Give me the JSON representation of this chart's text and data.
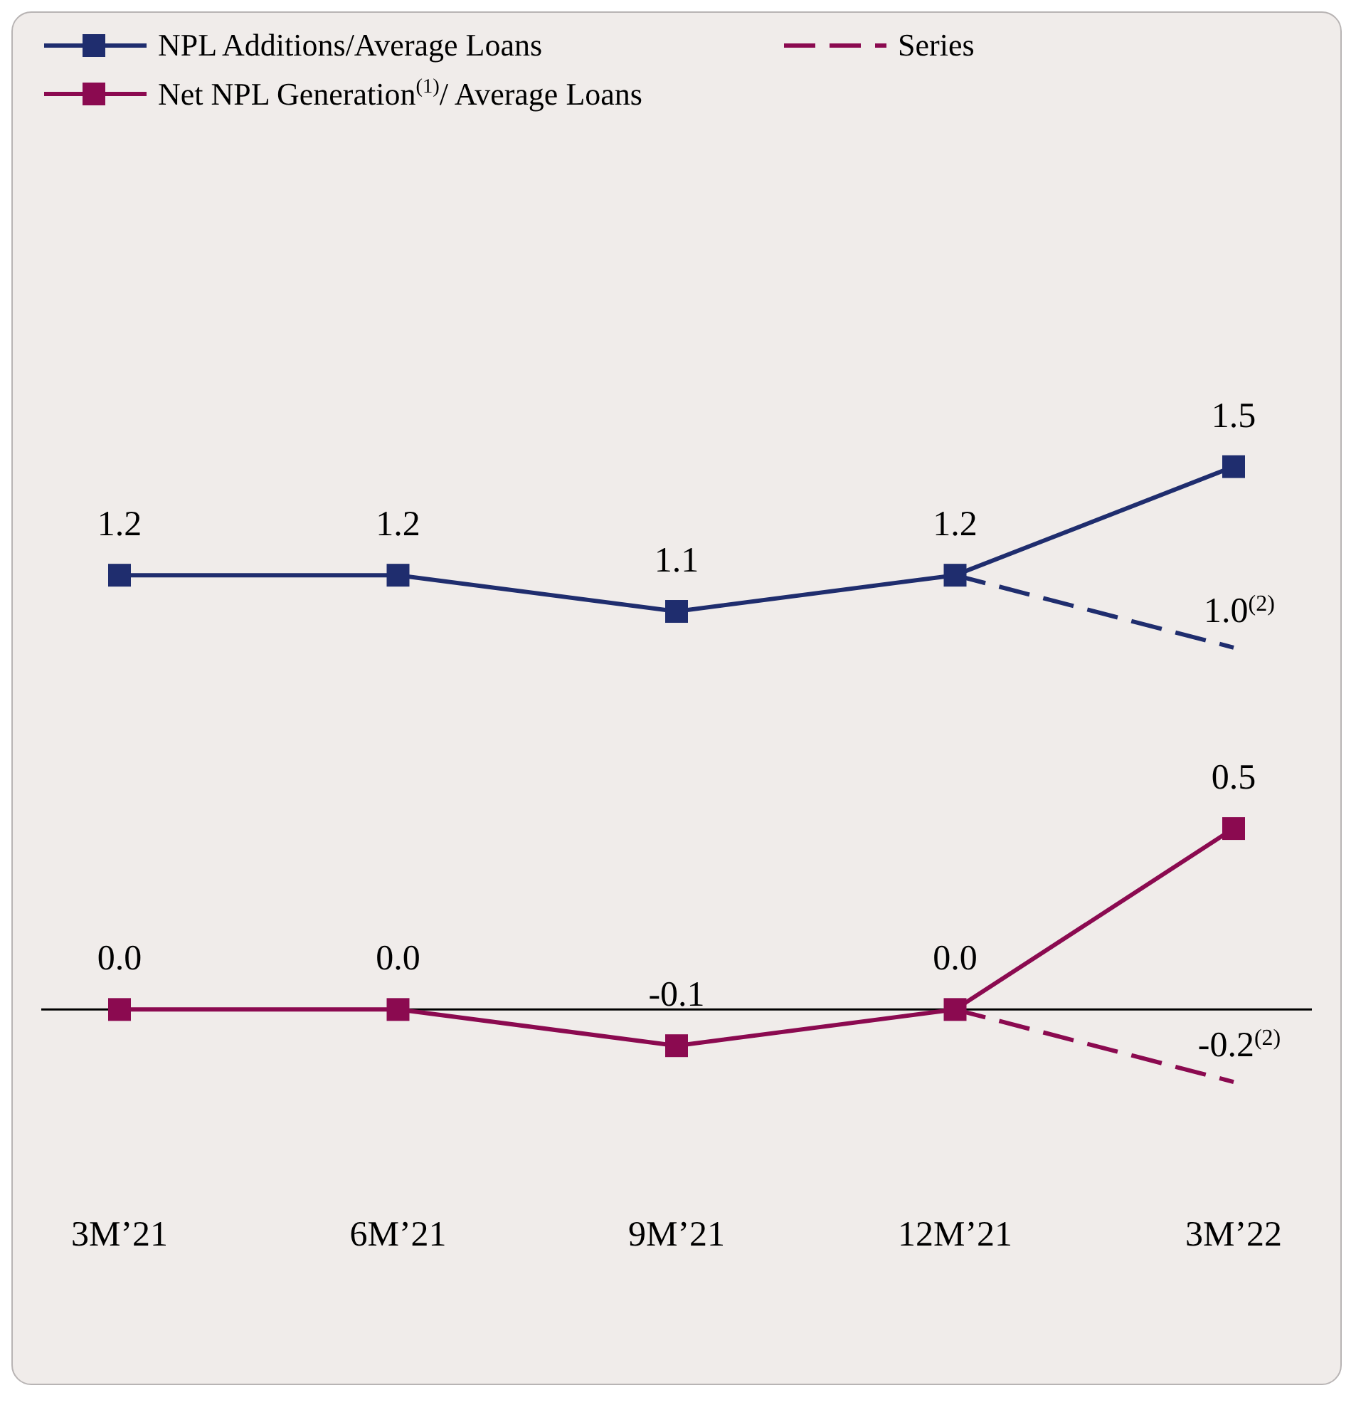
{
  "chart_data": {
    "type": "line",
    "categories": [
      "3M’21",
      "6M’21",
      "9M’21",
      "12M’21",
      "3M’22"
    ],
    "series": [
      {
        "name": "NPL Additions/Average Loans",
        "color": "#1f2d6e",
        "values": [
          1.2,
          1.2,
          1.1,
          1.2,
          1.5
        ],
        "marker": "square",
        "line_style": "solid",
        "value_labels": [
          "1.2",
          "1.2",
          "1.1",
          "1.2",
          "1.5"
        ]
      },
      {
        "color": "#1f2d6e",
        "values": [
          null,
          null,
          null,
          1.2,
          1.0
        ],
        "marker": "none",
        "line_style": "dashed",
        "value_labels": [
          null,
          null,
          null,
          null,
          "1.0$^{(2)}$"
        ]
      },
      {
        "name": "Net NPL Generation$^{(1)}$/ Average Loans",
        "color": "#8b0a50",
        "values": [
          0.0,
          0.0,
          -0.1,
          0.0,
          0.5
        ],
        "marker": "square",
        "line_style": "solid",
        "value_labels": [
          "0.0",
          "0.0",
          "-0.1",
          "0.0",
          "0.5"
        ]
      },
      {
        "name": "Series",
        "color": "#8b0a50",
        "values": [
          null,
          null,
          null,
          0.0,
          -0.2
        ],
        "marker": "none",
        "line_style": "dashed",
        "value_labels": [
          null,
          null,
          null,
          null,
          "-0.2$^{(2)}$"
        ]
      }
    ],
    "legend": "top left",
    "ref_lines": [
      {
        "axis": "y",
        "value": 0,
        "color": "#000000"
      }
    ]
  }
}
